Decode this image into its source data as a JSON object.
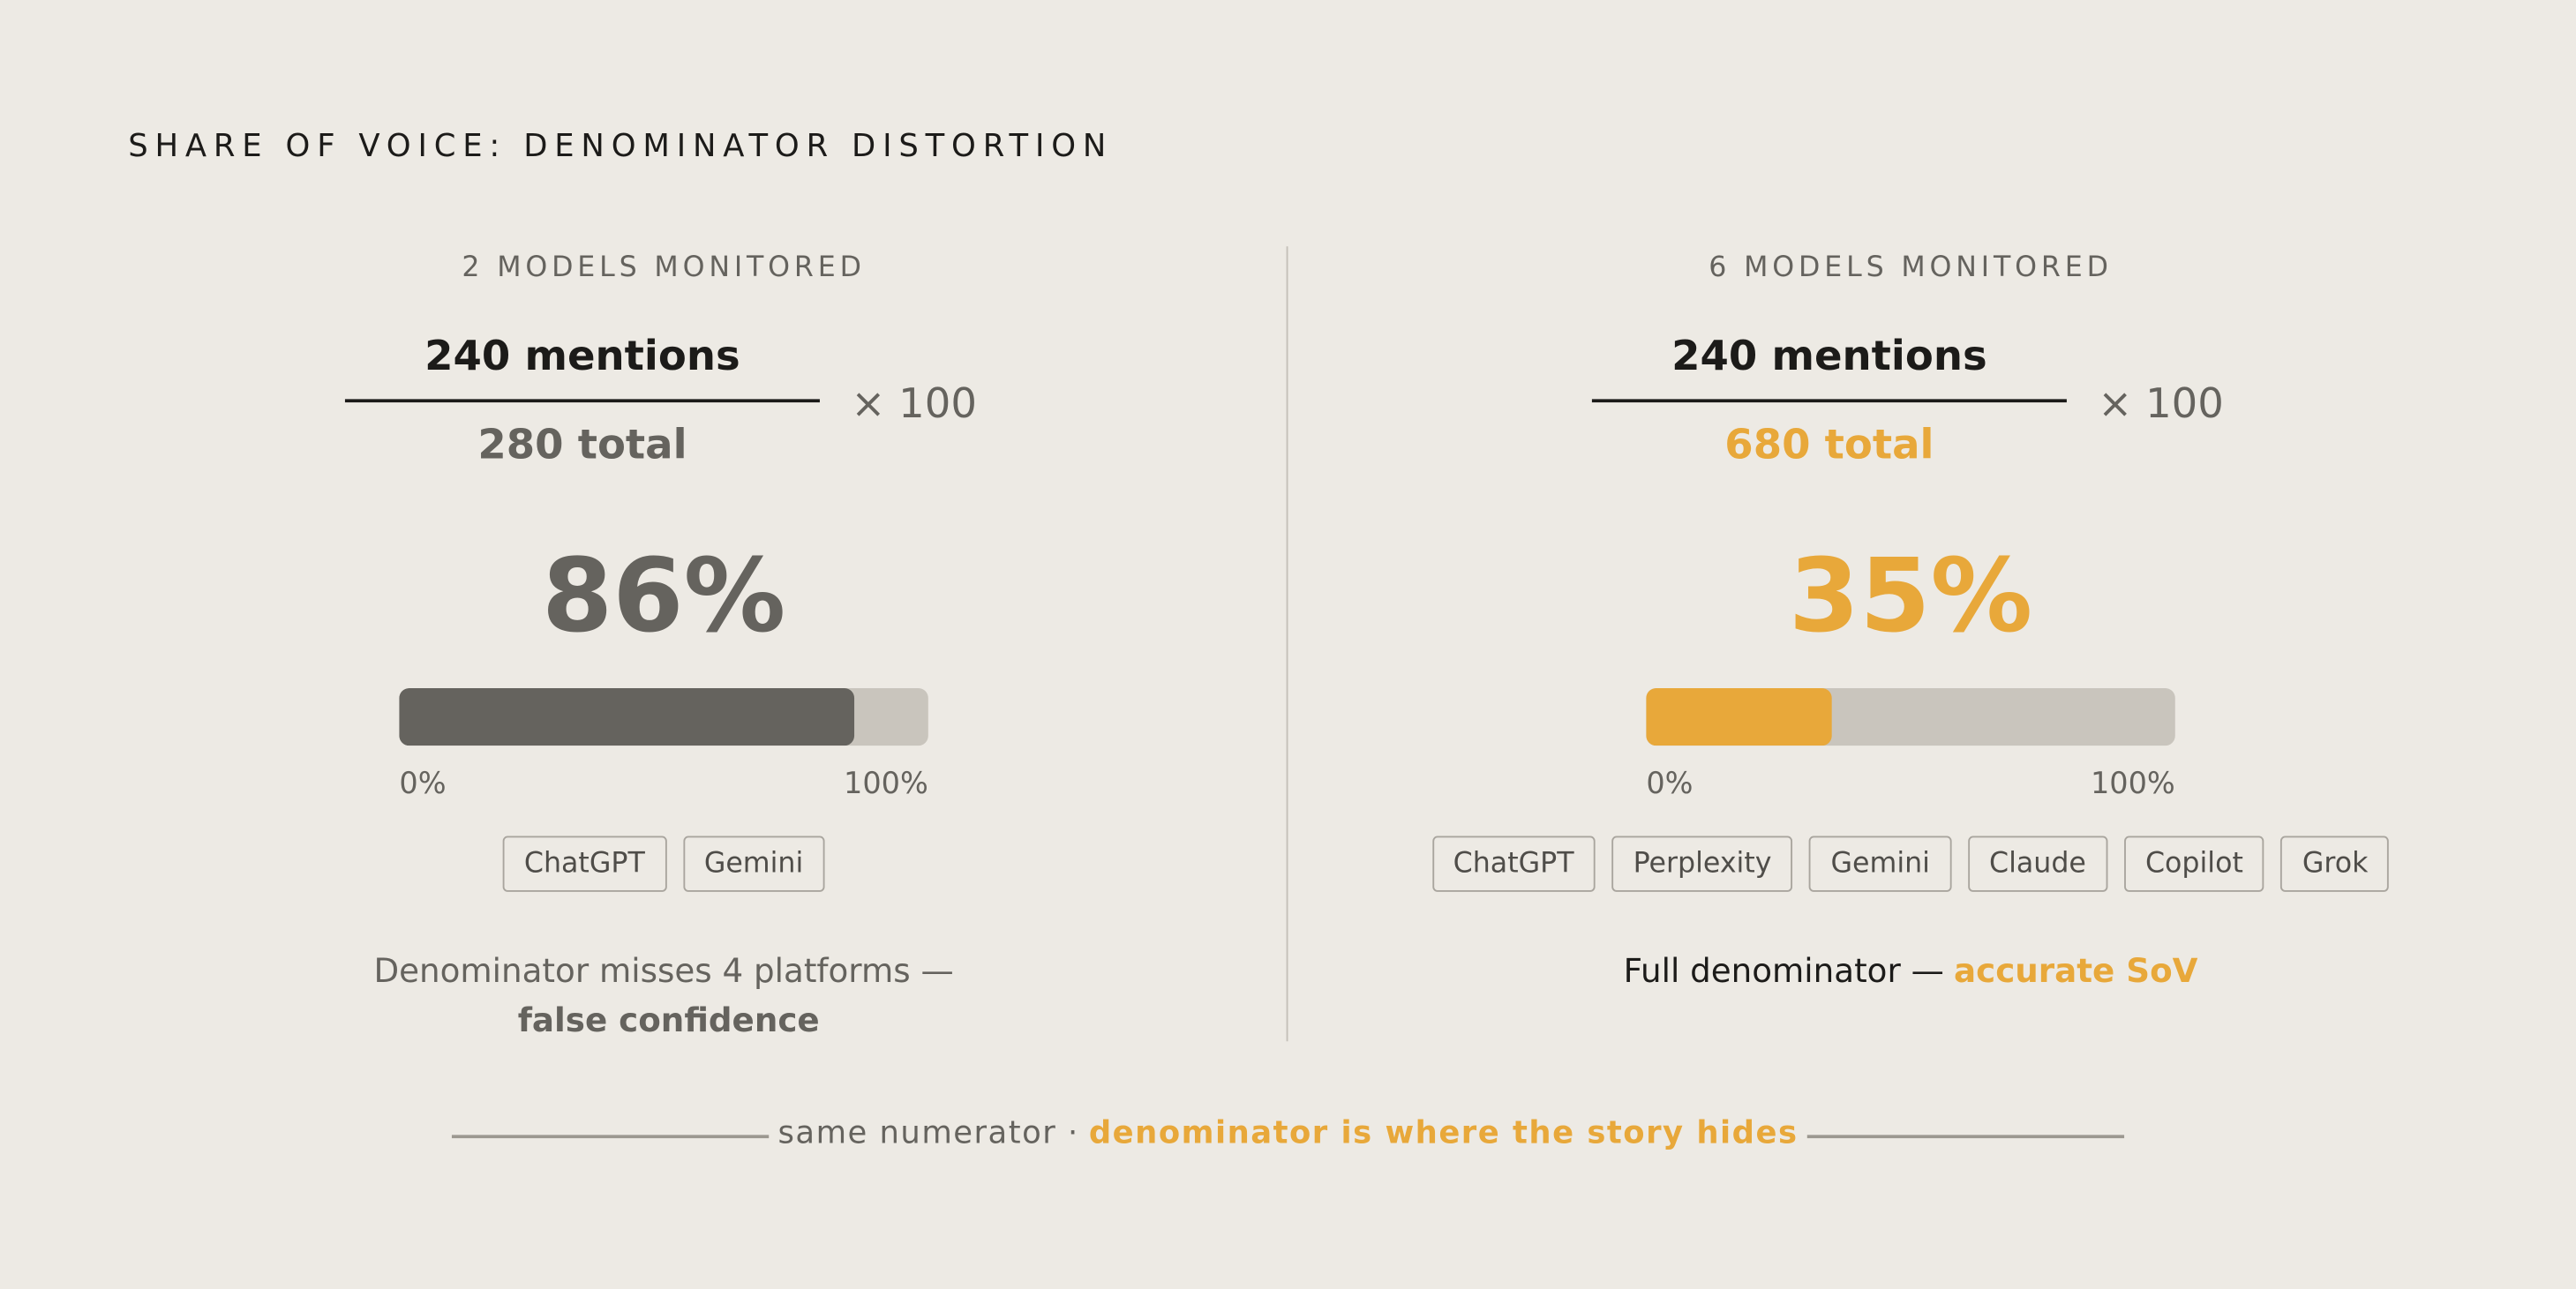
{
  "title": "SHARE OF VOICE: DENOMINATOR DISTORTION",
  "panels": [
    {
      "heading": "2 MODELS MONITORED",
      "numerator": "240 mentions",
      "denominator": "280 total",
      "multiplier": "× 100",
      "share": 86,
      "share_label": "86%",
      "color": "#65635e",
      "scale": [
        {
          "value": 0,
          "label": "0%"
        },
        {
          "value": 100,
          "label": "100%"
        }
      ],
      "models": [
        "ChatGPT",
        "Gemini"
      ],
      "caption": {
        "text": "Denominator misses 4 platforms —",
        "emphasis": "false confidence"
      }
    },
    {
      "heading": "6 MODELS MONITORED",
      "numerator": "240 mentions",
      "denominator": "680 total",
      "multiplier": "× 100",
      "share": 35,
      "share_label": "35%",
      "color": "#e8a83a",
      "scale": [
        {
          "value": 0,
          "label": "0%"
        },
        {
          "value": 100,
          "label": "100%"
        }
      ],
      "models": [
        "ChatGPT",
        "Perplexity",
        "Gemini",
        "Claude",
        "Copilot",
        "Grok"
      ],
      "caption": {
        "text": "Full denominator —",
        "emphasis": "accurate SoV"
      }
    }
  ],
  "footer": {
    "text": "same numerator ·",
    "emphasis": "denominator is where the story hides"
  }
}
